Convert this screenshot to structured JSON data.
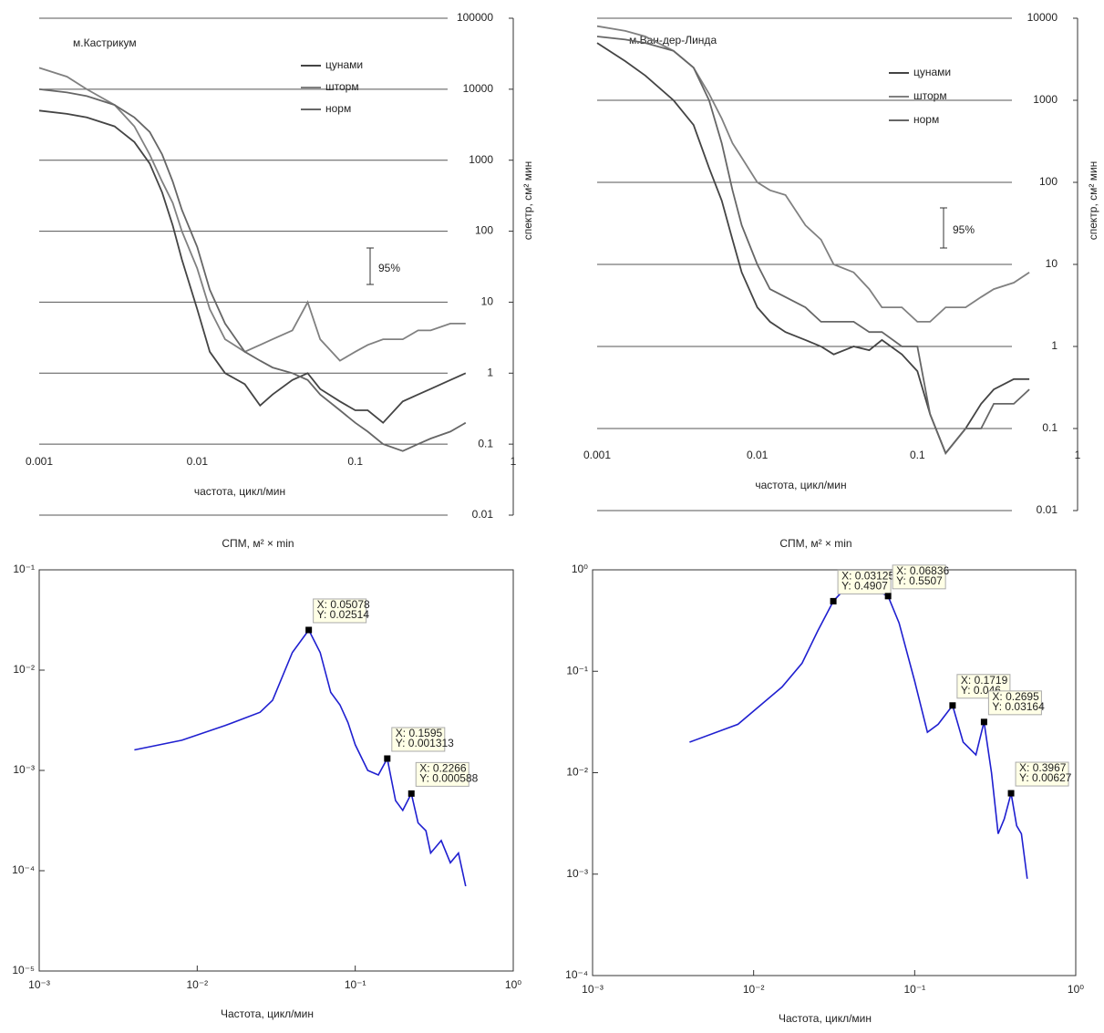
{
  "chart_data": [
    {
      "type": "line",
      "annotation": "м.Кастрикум",
      "error_bar_label": "95%",
      "x_label": "частота, цикл/мин",
      "y_label": "спектр, см² мин",
      "log_x": true,
      "log_y": true,
      "grid": true,
      "xlim": [
        0.001,
        1
      ],
      "xticks": [
        0.001,
        0.01,
        0.1,
        1
      ],
      "ylim": [
        0.01,
        100000
      ],
      "yticks": [
        0.01,
        0.1,
        1,
        10,
        100,
        1000,
        10000,
        100000
      ],
      "x": [
        0.001,
        0.0015,
        0.002,
        0.003,
        0.004,
        0.005,
        0.006,
        0.007,
        0.008,
        0.01,
        0.012,
        0.015,
        0.02,
        0.025,
        0.03,
        0.04,
        0.05,
        0.06,
        0.08,
        0.1,
        0.12,
        0.15,
        0.2,
        0.25,
        0.3,
        0.4,
        0.5
      ],
      "series": [
        {
          "name": "цунами",
          "color": "#444444",
          "values": [
            5000,
            4500,
            4000,
            3000,
            1800,
            900,
            350,
            120,
            40,
            8,
            2,
            1,
            0.7,
            0.35,
            0.5,
            0.8,
            1,
            0.6,
            0.4,
            0.3,
            0.3,
            0.2,
            0.4,
            0.5,
            0.6,
            0.8,
            1
          ]
        },
        {
          "name": "шторм",
          "color": "#808080",
          "values": [
            20000,
            15000,
            10000,
            6000,
            3000,
            1200,
            500,
            250,
            100,
            30,
            8,
            3,
            2,
            2.5,
            3,
            4,
            10,
            3,
            1.5,
            2,
            2.5,
            3,
            3,
            4,
            4,
            5,
            5
          ]
        },
        {
          "name": "норм",
          "color": "#666666",
          "values": [
            10000,
            9000,
            8000,
            6000,
            4000,
            2500,
            1200,
            500,
            200,
            60,
            15,
            5,
            2,
            1.5,
            1.2,
            1,
            0.8,
            0.5,
            0.3,
            0.2,
            0.15,
            0.1,
            0.08,
            0.1,
            0.12,
            0.15,
            0.2
          ]
        }
      ]
    },
    {
      "type": "line",
      "annotation": "м.Ван-дер-Линда",
      "error_bar_label": "95%",
      "x_label": "частота, цикл/мин",
      "y_label": "спектр, см² мин",
      "log_x": true,
      "log_y": true,
      "grid": true,
      "xlim": [
        0.001,
        1
      ],
      "xticks": [
        0.001,
        0.01,
        0.1,
        1
      ],
      "ylim": [
        0.01,
        10000
      ],
      "yticks": [
        0.01,
        0.1,
        1,
        10,
        100,
        1000,
        10000
      ],
      "x": [
        0.001,
        0.0015,
        0.002,
        0.003,
        0.004,
        0.005,
        0.006,
        0.007,
        0.008,
        0.01,
        0.012,
        0.015,
        0.02,
        0.025,
        0.03,
        0.04,
        0.05,
        0.06,
        0.08,
        0.1,
        0.12,
        0.15,
        0.2,
        0.25,
        0.3,
        0.4,
        0.5
      ],
      "series": [
        {
          "name": "цунами",
          "color": "#444444",
          "values": [
            5000,
            3000,
            2000,
            1000,
            500,
            150,
            60,
            20,
            8,
            3,
            2,
            1.5,
            1.2,
            1,
            0.8,
            1,
            0.9,
            1.2,
            0.8,
            0.5,
            0.15,
            0.05,
            0.1,
            0.2,
            0.3,
            0.4,
            0.4
          ]
        },
        {
          "name": "шторм",
          "color": "#808080",
          "values": [
            8000,
            7000,
            6000,
            4000,
            2500,
            1200,
            600,
            300,
            200,
            100,
            80,
            70,
            30,
            20,
            10,
            8,
            5,
            3,
            3,
            2,
            2,
            3,
            3,
            4,
            5,
            6,
            8
          ]
        },
        {
          "name": "норм",
          "color": "#666666",
          "values": [
            6000,
            5500,
            5000,
            4000,
            2500,
            1000,
            300,
            80,
            30,
            10,
            5,
            4,
            3,
            2,
            2,
            2,
            1.5,
            1.5,
            1,
            1,
            0.15,
            0.05,
            0.1,
            0.1,
            0.2,
            0.2,
            0.3
          ]
        }
      ]
    },
    {
      "type": "line",
      "title": "СПМ, м² × min",
      "x_label": "Частота, цикл/мин",
      "log_x": true,
      "log_y": true,
      "grid": false,
      "frame": true,
      "xlim": [
        0.001,
        1
      ],
      "xticks": [
        {
          "value": 0.001,
          "label": "10⁻³"
        },
        {
          "value": 0.01,
          "label": "10⁻²"
        },
        {
          "value": 0.1,
          "label": "10⁻¹"
        },
        {
          "value": 1,
          "label": "10⁰"
        }
      ],
      "ylim": [
        1e-05,
        0.1
      ],
      "yticks": [
        {
          "value": 1e-05,
          "label": "10⁻⁵"
        },
        {
          "value": 0.0001,
          "label": "10⁻⁴"
        },
        {
          "value": 0.001,
          "label": "10⁻³"
        },
        {
          "value": 0.01,
          "label": "10⁻²"
        },
        {
          "value": 0.1,
          "label": "10⁻¹"
        }
      ],
      "series": [
        {
          "name": null,
          "color": "#1f1fd0",
          "x": [
            0.004,
            0.008,
            0.015,
            0.025,
            0.03,
            0.04,
            0.05078,
            0.06,
            0.07,
            0.08,
            0.09,
            0.1,
            0.12,
            0.14,
            0.1595,
            0.18,
            0.2,
            0.2266,
            0.25,
            0.28,
            0.3,
            0.35,
            0.4,
            0.45,
            0.5
          ],
          "values": [
            0.0016,
            0.002,
            0.0028,
            0.0038,
            0.005,
            0.015,
            0.02514,
            0.015,
            0.006,
            0.0045,
            0.003,
            0.0018,
            0.001,
            0.0009,
            0.001313,
            0.0005,
            0.0004,
            0.000588,
            0.0003,
            0.00025,
            0.00015,
            0.0002,
            0.00012,
            0.00015,
            7e-05
          ]
        }
      ],
      "datatips": [
        {
          "x": 0.05078,
          "y": 0.02514,
          "label_x": "X: 0.05078",
          "label_y": "Y: 0.02514"
        },
        {
          "x": 0.1595,
          "y": 0.001313,
          "label_x": "X: 0.1595",
          "label_y": "Y: 0.001313"
        },
        {
          "x": 0.2266,
          "y": 0.000588,
          "label_x": "X: 0.2266",
          "label_y": "Y: 0.000588"
        }
      ]
    },
    {
      "type": "line",
      "title": "СПМ, м² × min",
      "x_label": "Частота, цикл/мин",
      "log_x": true,
      "log_y": true,
      "grid": false,
      "frame": true,
      "xlim": [
        0.001,
        1
      ],
      "xticks": [
        {
          "value": 0.001,
          "label": "10⁻³"
        },
        {
          "value": 0.01,
          "label": "10⁻²"
        },
        {
          "value": 0.1,
          "label": "10⁻¹"
        },
        {
          "value": 1,
          "label": "10⁰"
        }
      ],
      "ylim": [
        0.0001,
        1
      ],
      "yticks": [
        {
          "value": 0.0001,
          "label": "10⁻⁴"
        },
        {
          "value": 0.001,
          "label": "10⁻³"
        },
        {
          "value": 0.01,
          "label": "10⁻²"
        },
        {
          "value": 0.1,
          "label": "10⁻¹"
        },
        {
          "value": 1,
          "label": "10⁰"
        }
      ],
      "series": [
        {
          "name": null,
          "color": "#1f1fd0",
          "x": [
            0.004,
            0.008,
            0.015,
            0.02,
            0.025,
            0.03125,
            0.04,
            0.05,
            0.06836,
            0.08,
            0.1,
            0.12,
            0.14,
            0.1719,
            0.2,
            0.24,
            0.2695,
            0.3,
            0.33,
            0.36,
            0.3967,
            0.43,
            0.46,
            0.5
          ],
          "values": [
            0.02,
            0.03,
            0.07,
            0.12,
            0.25,
            0.4907,
            0.75,
            0.7,
            0.5507,
            0.3,
            0.08,
            0.025,
            0.03,
            0.046,
            0.02,
            0.015,
            0.03164,
            0.01,
            0.0025,
            0.0035,
            0.00627,
            0.003,
            0.0025,
            0.0009
          ]
        }
      ],
      "datatips": [
        {
          "x": 0.03125,
          "y": 0.4907,
          "label_x": "X: 0.03125",
          "label_y": "Y: 0.4907"
        },
        {
          "x": 0.06836,
          "y": 0.5507,
          "label_x": "X: 0.06836",
          "label_y": "Y: 0.5507"
        },
        {
          "x": 0.1719,
          "y": 0.046,
          "label_x": "X: 0.1719",
          "label_y": "Y: 0.046"
        },
        {
          "x": 0.2695,
          "y": 0.03164,
          "label_x": "X: 0.2695",
          "label_y": "Y: 0.03164"
        },
        {
          "x": 0.3967,
          "y": 0.00627,
          "label_x": "X: 0.3967",
          "label_y": "Y: 0.00627"
        }
      ]
    }
  ]
}
